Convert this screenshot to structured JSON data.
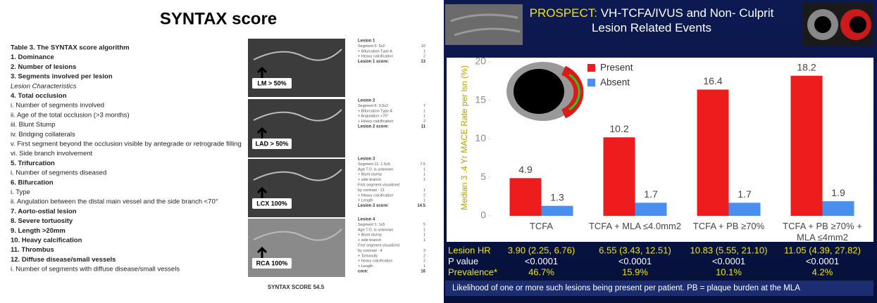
{
  "left": {
    "title": "SYNTAX score",
    "lines": [
      {
        "text": "Table 3. The SYNTAX score algorithm",
        "style": "head"
      },
      {
        "text": "1. Dominance",
        "style": "head"
      },
      {
        "text": "2. Number of lesions",
        "style": "head"
      },
      {
        "text": "3. Segments involved per lesion",
        "style": "head"
      },
      {
        "text": "Lesion Characteristics",
        "style": "note"
      },
      {
        "text": "4. Total occlusion",
        "style": "head"
      },
      {
        "text": "i. Number of segments involved",
        "style": "sub"
      },
      {
        "text": "ii. Age of the total occlusion (>3 months)",
        "style": "sub"
      },
      {
        "text": "iii. Blunt Stump",
        "style": "sub"
      },
      {
        "text": "iv. Bridging collaterals",
        "style": "sub"
      },
      {
        "text": "v. First segment beyond the occlusion visible by antegrade or retrograde filling",
        "style": "sub"
      },
      {
        "text": "vi. Side branch involvement",
        "style": "sub"
      },
      {
        "text": "5. Trifurcation",
        "style": "head"
      },
      {
        "text": "i. Number of segments diseased",
        "style": "sub"
      },
      {
        "text": "6. Bifurcation",
        "style": "head"
      },
      {
        "text": "i. Type",
        "style": "sub"
      },
      {
        "text": "ii. Angulation between the distal main vessel and the side branch <70°",
        "style": "sub"
      },
      {
        "text": "7. Aorto-ostial lesion",
        "style": "head"
      },
      {
        "text": "8. Severe tortuosity",
        "style": "head"
      },
      {
        "text": "9. Length >20mm",
        "style": "head"
      },
      {
        "text": "10. Heavy calcification",
        "style": "head"
      },
      {
        "text": "11. Thrombus",
        "style": "head"
      },
      {
        "text": "12. Diffuse disease/small vessels",
        "style": "head"
      },
      {
        "text": "i. Number of segments with diffuse disease/small vessels",
        "style": "sub"
      }
    ],
    "images": [
      "LM > 50%",
      "LAD > 50%",
      "LCX 100%",
      "RCA 100%"
    ],
    "lesions": [
      {
        "title": "Lesion 1",
        "rows": [
          [
            "Segment 5: 5x2",
            10
          ],
          [
            "+ Bifurcation Type A",
            1
          ],
          [
            "+ Heavy calcification",
            2
          ]
        ],
        "total": [
          "Lesion 1 score:",
          13
        ]
      },
      {
        "title": "Lesion 2",
        "rows": [
          [
            "Segment 6: 3.5x2",
            7
          ],
          [
            "+ Bifurcation Type A",
            1
          ],
          [
            "+ Angulation <70°",
            1
          ],
          [
            "+ Heavy calcification",
            2
          ]
        ],
        "total": [
          "Lesion 2 score:",
          11
        ]
      },
      {
        "title": "Lesion 3",
        "rows": [
          [
            "Segment 11: 1.5x5",
            7.5
          ],
          [
            "Age T.O. is unknown",
            1
          ],
          [
            "+ Blunt stump",
            1
          ],
          [
            "+ side branch",
            1
          ],
          [
            "First segment visualized"
          ],
          [
            "by contrast : 13",
            1
          ],
          [
            "+ Heavy calcification",
            2
          ],
          [
            "+ Length",
            1
          ]
        ],
        "total": [
          "Lesion 3 score:",
          14.5
        ]
      },
      {
        "title": "Lesion 4",
        "rows": [
          [
            "Segment 1: 1x5",
            5
          ],
          [
            "Age T.O. is unknown",
            1
          ],
          [
            "+ Blunt stump",
            1
          ],
          [
            "+ side branch",
            1
          ],
          [
            "First segment visualized"
          ],
          [
            "by contrast : 4",
            3
          ],
          [
            "+ Tortuosity",
            2
          ],
          [
            "+ heavy calcification",
            2
          ],
          [
            "+ Length",
            1
          ]
        ],
        "total": [
          "core:",
          16
        ]
      }
    ],
    "caption": "SYNTAX SCORE 54.5"
  },
  "chart_data": {
    "type": "bar",
    "title_prefix": "PROSPECT:",
    "title": "VH-TCFA/IVUS and Non- Culprit Lesion Related Events",
    "y_label": "Median 3 .4 Yr MACE Rate per lsn (%)",
    "categories": [
      "TCFA",
      "TCFA + MLA ≤4.0mm2",
      "TCFA + PB ≥70%",
      "TCFA + PB ≥70% + MLA ≤4mm2"
    ],
    "series": [
      {
        "name": "Present",
        "color": "#ee1c1c",
        "values": [
          4.9,
          10.2,
          16.4,
          18.2
        ]
      },
      {
        "name": "Absent",
        "color": "#4a8ef0",
        "values": [
          1.3,
          1.7,
          1.7,
          1.9
        ]
      }
    ],
    "ylim": [
      0,
      20
    ],
    "yticks": [
      0,
      5,
      10,
      15,
      20
    ],
    "stats": [
      {
        "label": "Lesion HR",
        "color": "#f2e600",
        "values": [
          "3.90 (2.25, 6.76)",
          "6.55 (3.43, 12.51)",
          "10.83 (5.55, 21.10)",
          "11.05 (4.39, 27.82)"
        ]
      },
      {
        "label": "P value",
        "color": "#ffffff",
        "values": [
          "<0.0001",
          "<0.0001",
          "<0.0001",
          "<0.0001"
        ]
      },
      {
        "label": "Prevalence*",
        "color": "#f2e600",
        "values": [
          "46.7%",
          "15.9%",
          "10.1%",
          "4.2%"
        ]
      }
    ],
    "footnote": "Likelihood of one or more such lesions being present per patient. PB = plaque burden at the MLA"
  }
}
